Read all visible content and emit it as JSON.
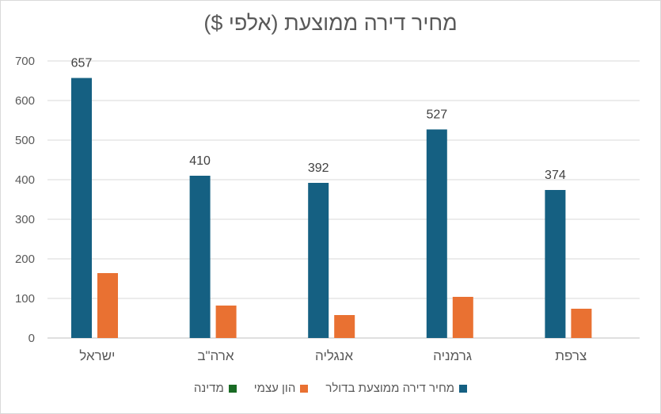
{
  "chart_data": {
    "type": "bar",
    "title": "מחיר דירה ממוצעת (אלפי $)",
    "categories": [
      "ישראל",
      "ארה\"ב",
      "אנגליה",
      "גרמניה",
      "צרפת"
    ],
    "series": [
      {
        "name": "מחיר דירה ממוצעת בדולר",
        "color": "#156082",
        "values": [
          657,
          410,
          392,
          527,
          374
        ],
        "show_labels": true
      },
      {
        "name": "הון עצמי",
        "color": "#E97132",
        "values": [
          164,
          82,
          58,
          104,
          74
        ],
        "show_labels": false
      },
      {
        "name": "מדינה",
        "color": "#196B24",
        "values": [
          0,
          0,
          0,
          0,
          0
        ],
        "show_labels": false
      }
    ],
    "ylim": [
      0,
      700
    ],
    "yticks": [
      0,
      100,
      200,
      300,
      400,
      500,
      600,
      700
    ],
    "grid": true,
    "legend_position": "bottom"
  }
}
